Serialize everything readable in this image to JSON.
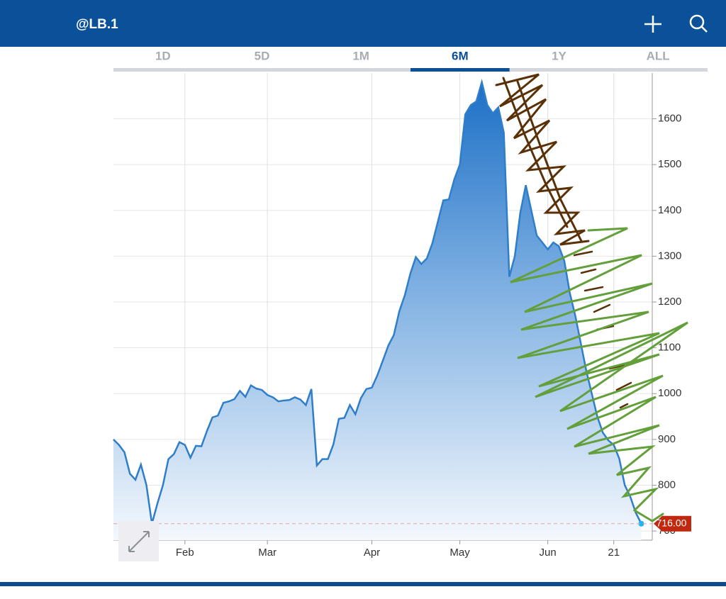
{
  "header": {
    "title": "@LB.1"
  },
  "tabs": [
    "1D",
    "5D",
    "1M",
    "6M",
    "1Y",
    "ALL"
  ],
  "selected_tab": 3,
  "chart_data": {
    "type": "area",
    "color": "#2f7ec9",
    "values": [
      900,
      888,
      872,
      825,
      812,
      845,
      800,
      716,
      760,
      800,
      857,
      868,
      894,
      888,
      860,
      886,
      885,
      918,
      948,
      952,
      980,
      983,
      988,
      1006,
      993,
      1018,
      1011,
      1008,
      997,
      992,
      983,
      985,
      986,
      992,
      987,
      975,
      1010,
      843,
      857,
      857,
      889,
      945,
      947,
      975,
      955,
      990,
      1010,
      1013,
      1040,
      1072,
      1105,
      1128,
      1180,
      1215,
      1262,
      1298,
      1283,
      1295,
      1328,
      1375,
      1422,
      1424,
      1468,
      1500,
      1610,
      1630,
      1638,
      1680,
      1630,
      1612,
      1625,
      1570,
      1255,
      1300,
      1395,
      1455,
      1400,
      1345,
      1330,
      1315,
      1330,
      1322,
      1290,
      1220,
      1170,
      1110,
      1050,
      1000,
      950,
      915,
      898,
      888,
      858,
      800,
      775,
      740,
      716
    ],
    "xlim": [
      0,
      98
    ],
    "xticks": [
      {
        "value": 13,
        "label": "Feb"
      },
      {
        "value": 28,
        "label": "Mar"
      },
      {
        "value": 47,
        "label": "Apr"
      },
      {
        "value": 63,
        "label": "May"
      },
      {
        "value": 79,
        "label": "Jun"
      },
      {
        "value": 91,
        "label": "21"
      }
    ],
    "ylim": [
      680,
      1700
    ],
    "yticks": [
      700,
      800,
      900,
      1000,
      1100,
      1200,
      1300,
      1400,
      1500,
      1600
    ],
    "grid": true,
    "last_price": {
      "value": 716,
      "label": "716.00"
    }
  }
}
